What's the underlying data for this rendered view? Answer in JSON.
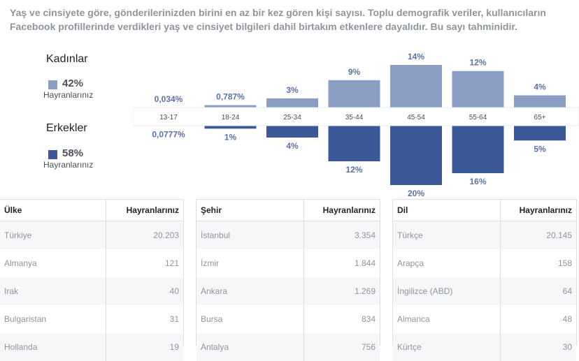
{
  "description": "Yaş ve cinsiyete göre, gönderilerinizden birini en az bir kez gören kişi sayısı. Toplu demografik veriler, kullanıcıların Facebook profillerinde verdikleri yaş ve cinsiyet bilgileri dahil birtakım etkenlere dayalıdır. Bu sayı tahminidir.",
  "legend": {
    "women": {
      "title": "Kadınlar",
      "percent": "42%",
      "subtitle": "Hayranlarınız",
      "color": "#8b9dc3"
    },
    "men": {
      "title": "Erkekler",
      "percent": "58%",
      "subtitle": "Hayranlarınız",
      "color": "#3b5998"
    }
  },
  "chart_data": {
    "type": "bar",
    "categories": [
      "13-17",
      "18-24",
      "25-34",
      "35-44",
      "45-54",
      "55-64",
      "65+"
    ],
    "series": [
      {
        "name": "Kadınlar",
        "values": [
          0.034,
          0.787,
          3,
          9,
          14,
          12,
          4
        ],
        "labels": [
          "0,034%",
          "0,787%",
          "3%",
          "9%",
          "14%",
          "12%",
          "4%"
        ],
        "color": "#8b9dc3"
      },
      {
        "name": "Erkekler",
        "values": [
          0.0777,
          1,
          4,
          12,
          20,
          16,
          5
        ],
        "labels": [
          "0,0777%",
          "1%",
          "4%",
          "12%",
          "20%",
          "16%",
          "5%"
        ],
        "color": "#3b5998"
      }
    ],
    "ylim": [
      0,
      20
    ]
  },
  "tables": [
    {
      "header": {
        "name": "Ülke",
        "value": "Hayranlarınız"
      },
      "rows": [
        {
          "name": "Türkiye",
          "value": "20.203"
        },
        {
          "name": "Almanya",
          "value": "121"
        },
        {
          "name": "Irak",
          "value": "40"
        },
        {
          "name": "Bulgaristan",
          "value": "31"
        },
        {
          "name": "Hollanda",
          "value": "19"
        }
      ]
    },
    {
      "header": {
        "name": "Şehir",
        "value": "Hayranlarınız"
      },
      "rows": [
        {
          "name": "İstanbul",
          "value": "3.354"
        },
        {
          "name": "İzmir",
          "value": "1.844"
        },
        {
          "name": "Ankara",
          "value": "1.269"
        },
        {
          "name": "Bursa",
          "value": "834"
        },
        {
          "name": "Antalya",
          "value": "756"
        }
      ]
    },
    {
      "header": {
        "name": "Dil",
        "value": "Hayranlarınız"
      },
      "rows": [
        {
          "name": "Türkçe",
          "value": "20.145"
        },
        {
          "name": "Arapça",
          "value": "158"
        },
        {
          "name": "İngilizce (ABD)",
          "value": "64"
        },
        {
          "name": "Almanca",
          "value": "48"
        },
        {
          "name": "Kürtçe",
          "value": "30"
        }
      ]
    }
  ]
}
